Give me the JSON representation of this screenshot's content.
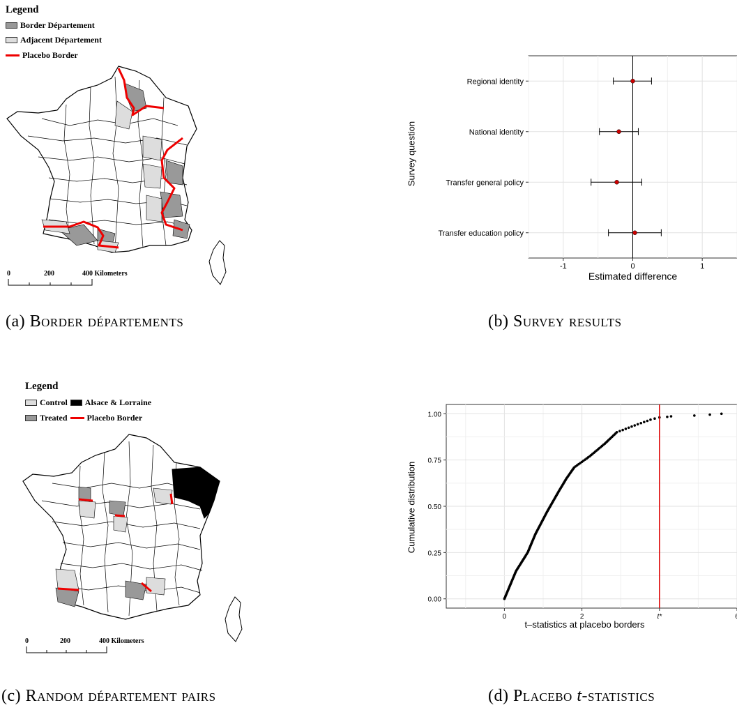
{
  "panel_a": {
    "legend_title": "Legend",
    "legend_items": [
      {
        "label": "Border Département",
        "swatch": "dark"
      },
      {
        "label": "Adjacent Département",
        "swatch": "light"
      },
      {
        "label": "Placebo Border",
        "swatch": "red"
      }
    ],
    "scale_ticks": [
      "0",
      "200",
      "400 Kilometers"
    ],
    "caption_prefix": "(a)",
    "caption": "Border départements"
  },
  "panel_b": {
    "caption_prefix": "(b)",
    "caption": "Survey results",
    "chart_data": {
      "type": "scatter",
      "xlabel": "Estimated difference",
      "ylabel": "Survey question",
      "xlim": [
        -1.5,
        1.5
      ],
      "xticks": [
        "-1",
        "0",
        "1"
      ],
      "categories": [
        "Regional identity",
        "National identity",
        "Transfer general policy",
        "Transfer education policy"
      ],
      "estimates": [
        0.0,
        -0.2,
        -0.23,
        0.03
      ],
      "ci_low": [
        -0.28,
        -0.48,
        -0.6,
        -0.35
      ],
      "ci_high": [
        0.27,
        0.08,
        0.13,
        0.41
      ],
      "grid": true,
      "point_color": "#cc0000"
    }
  },
  "panel_c": {
    "legend_title": "Legend",
    "legend_items": [
      {
        "label": "Control",
        "swatch": "light"
      },
      {
        "label": "Alsace & Lorraine",
        "swatch": "black"
      },
      {
        "label": "Treated",
        "swatch": "dark"
      },
      {
        "label": "Placebo Border",
        "swatch": "red"
      }
    ],
    "scale_ticks": [
      "0",
      "200",
      "400 Kilometers"
    ],
    "caption_prefix": "(c)",
    "caption": "Random département pairs"
  },
  "panel_d": {
    "caption_prefix": "(d)",
    "caption_main": "Placebo ",
    "caption_italic": "t",
    "caption_tail": "-statistics",
    "chart_data": {
      "type": "scatter",
      "xlabel": "t–statistics at placebo borders",
      "ylabel": "Cumulative distribution",
      "xlim": [
        -1.5,
        6
      ],
      "ylim": [
        -0.05,
        1.05
      ],
      "xticks": [
        "0",
        "2",
        "t*",
        "6"
      ],
      "yticks": [
        "0.00",
        "0.25",
        "0.50",
        "0.75",
        "1.00"
      ],
      "t_star": 4.0,
      "vline_color": "#dd0000",
      "cdf_knots": [
        [
          0.0,
          0.0
        ],
        [
          0.2,
          0.1
        ],
        [
          0.3,
          0.15
        ],
        [
          0.6,
          0.25
        ],
        [
          0.8,
          0.35
        ],
        [
          1.1,
          0.47
        ],
        [
          1.4,
          0.58
        ],
        [
          1.6,
          0.65
        ],
        [
          1.8,
          0.71
        ],
        [
          2.2,
          0.77
        ],
        [
          2.6,
          0.84
        ],
        [
          2.9,
          0.9
        ],
        [
          3.4,
          0.94
        ],
        [
          3.8,
          0.97
        ],
        [
          4.0,
          0.98
        ]
      ],
      "outliers": [
        [
          4.2,
          0.983
        ],
        [
          4.3,
          0.986
        ],
        [
          4.9,
          0.99
        ],
        [
          5.3,
          0.995
        ],
        [
          5.6,
          1.0
        ]
      ]
    }
  }
}
